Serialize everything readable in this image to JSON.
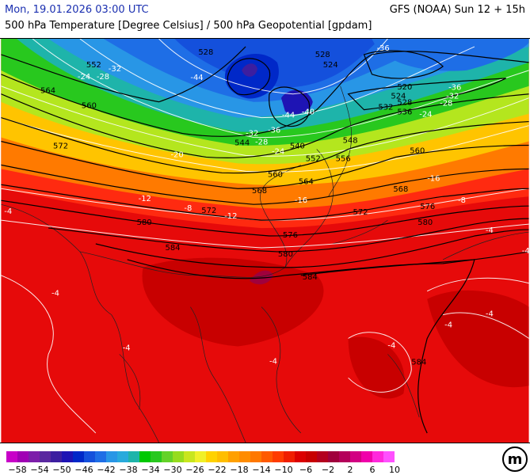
{
  "header": {
    "date": "Mon, 19.01.2026 03:00 UTC",
    "model_run": "GFS (NOAA) Sun 12 + 15h",
    "parameter": "500 hPa Temperature [Degree Celsius] / 500 hPa Geopotential [gpdam]"
  },
  "geopotential_labels": [
    "528",
    "528",
    "524",
    "552",
    "564",
    "560",
    "572",
    "520",
    "524",
    "528",
    "532",
    "536",
    "544",
    "540",
    "548",
    "556",
    "552",
    "560",
    "560",
    "564",
    "568",
    "568",
    "572",
    "572",
    "576",
    "580",
    "580",
    "584",
    "576",
    "580",
    "584",
    "584"
  ],
  "temperature_labels": [
    "-36",
    "-24",
    "-28",
    "-32",
    "-44",
    "-40",
    "-44",
    "-36",
    "-32",
    "-28",
    "-24",
    "-36",
    "-32",
    "-28",
    "-24",
    "-20",
    "-16",
    "-12",
    "-8",
    "-12",
    "-16",
    "-8",
    "-4",
    "-4",
    "-4",
    "-4",
    "-4",
    "-4",
    "-4",
    "-4",
    "-4"
  ],
  "legend": {
    "labels": [
      "−58",
      "−54",
      "−50",
      "−46",
      "−42",
      "−38",
      "−34",
      "−30",
      "−26",
      "−22",
      "−18",
      "−14",
      "−10",
      "−6",
      "−2",
      "2",
      "6",
      "10"
    ],
    "colors": [
      "#c800c8",
      "#a000b4",
      "#7d1eaa",
      "#5a28a0",
      "#3c1ea0",
      "#1e14b4",
      "#0028c8",
      "#1450dc",
      "#1e6ee6",
      "#2896e6",
      "#28aadc",
      "#1eb4aa",
      "#00c800",
      "#28c81e",
      "#64d228",
      "#96dc1e",
      "#c8e61e",
      "#f0f028",
      "#ffd200",
      "#ffbe00",
      "#ffa000",
      "#ff8c00",
      "#ff7800",
      "#ff5a00",
      "#ff3c00",
      "#f01e00",
      "#dc0000",
      "#c80000",
      "#b4001e",
      "#a0003c",
      "#b4005a",
      "#d20082",
      "#f000aa",
      "#ff28dc",
      "#ff50ff"
    ]
  },
  "logo": {
    "text": "m",
    "icon": "meteologix-logo-icon"
  }
}
